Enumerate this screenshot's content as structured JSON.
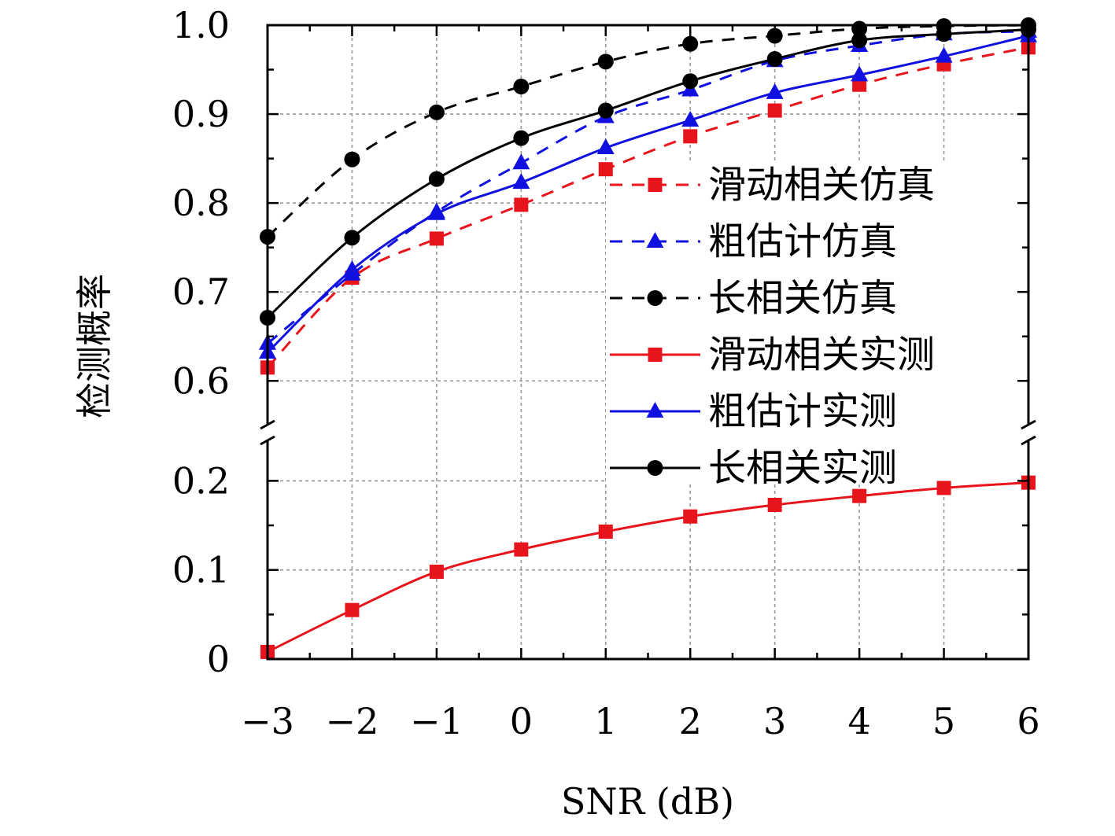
{
  "chart_data": {
    "type": "line",
    "xlabel": "SNR (dB)",
    "ylabel": "检测概率",
    "x": [
      -3,
      -2,
      -1,
      0,
      1,
      2,
      3,
      4,
      5,
      6
    ],
    "x_tick_labels": [
      "−3",
      "−2",
      "−1",
      "0",
      "1",
      "2",
      "3",
      "4",
      "5",
      "6"
    ],
    "xlim": [
      -3,
      6
    ],
    "y_axis_break": {
      "lower_range": [
        0,
        0.25
      ],
      "upper_range": [
        0.55,
        1.0
      ]
    },
    "y_ticks_lower": [
      0,
      0.1,
      0.2
    ],
    "y_tick_labels_lower": [
      "0",
      "0.1",
      "0.2"
    ],
    "y_ticks_upper": [
      0.6,
      0.7,
      0.8,
      0.9,
      1.0
    ],
    "y_tick_labels_upper": [
      "0.6",
      "0.7",
      "0.8",
      "0.9",
      "1.0"
    ],
    "grid": true,
    "legend_position": "right",
    "series": [
      {
        "name": "滑动相关仿真",
        "color": "#e8141c",
        "line": "dashed",
        "marker": "square",
        "values": [
          0.615,
          0.716,
          0.76,
          0.798,
          0.838,
          0.875,
          0.904,
          0.933,
          0.956,
          0.975
        ]
      },
      {
        "name": "粗估计仿真",
        "color": "#1010e0",
        "line": "dashed",
        "marker": "triangle",
        "values": [
          0.642,
          0.72,
          0.79,
          0.845,
          0.897,
          0.927,
          0.96,
          0.977,
          0.99,
          0.993
        ]
      },
      {
        "name": "长相关仿真",
        "color": "#000000",
        "line": "dashed",
        "marker": "circle",
        "values": [
          0.762,
          0.849,
          0.902,
          0.931,
          0.959,
          0.979,
          0.988,
          0.996,
          0.999,
          1.0
        ]
      },
      {
        "name": "滑动相关实测",
        "color": "#e8141c",
        "line": "solid",
        "marker": "square",
        "values": [
          0.008,
          0.055,
          0.098,
          0.123,
          0.143,
          0.16,
          0.173,
          0.183,
          0.192,
          0.198
        ]
      },
      {
        "name": "粗估计实测",
        "color": "#1010e0",
        "line": "solid",
        "marker": "triangle",
        "values": [
          0.632,
          0.725,
          0.788,
          0.823,
          0.862,
          0.893,
          0.924,
          0.944,
          0.965,
          0.988
        ]
      },
      {
        "name": "长相关实测",
        "color": "#000000",
        "line": "solid",
        "marker": "circle",
        "values": [
          0.671,
          0.761,
          0.827,
          0.873,
          0.904,
          0.937,
          0.962,
          0.983,
          0.99,
          0.995
        ]
      }
    ]
  }
}
